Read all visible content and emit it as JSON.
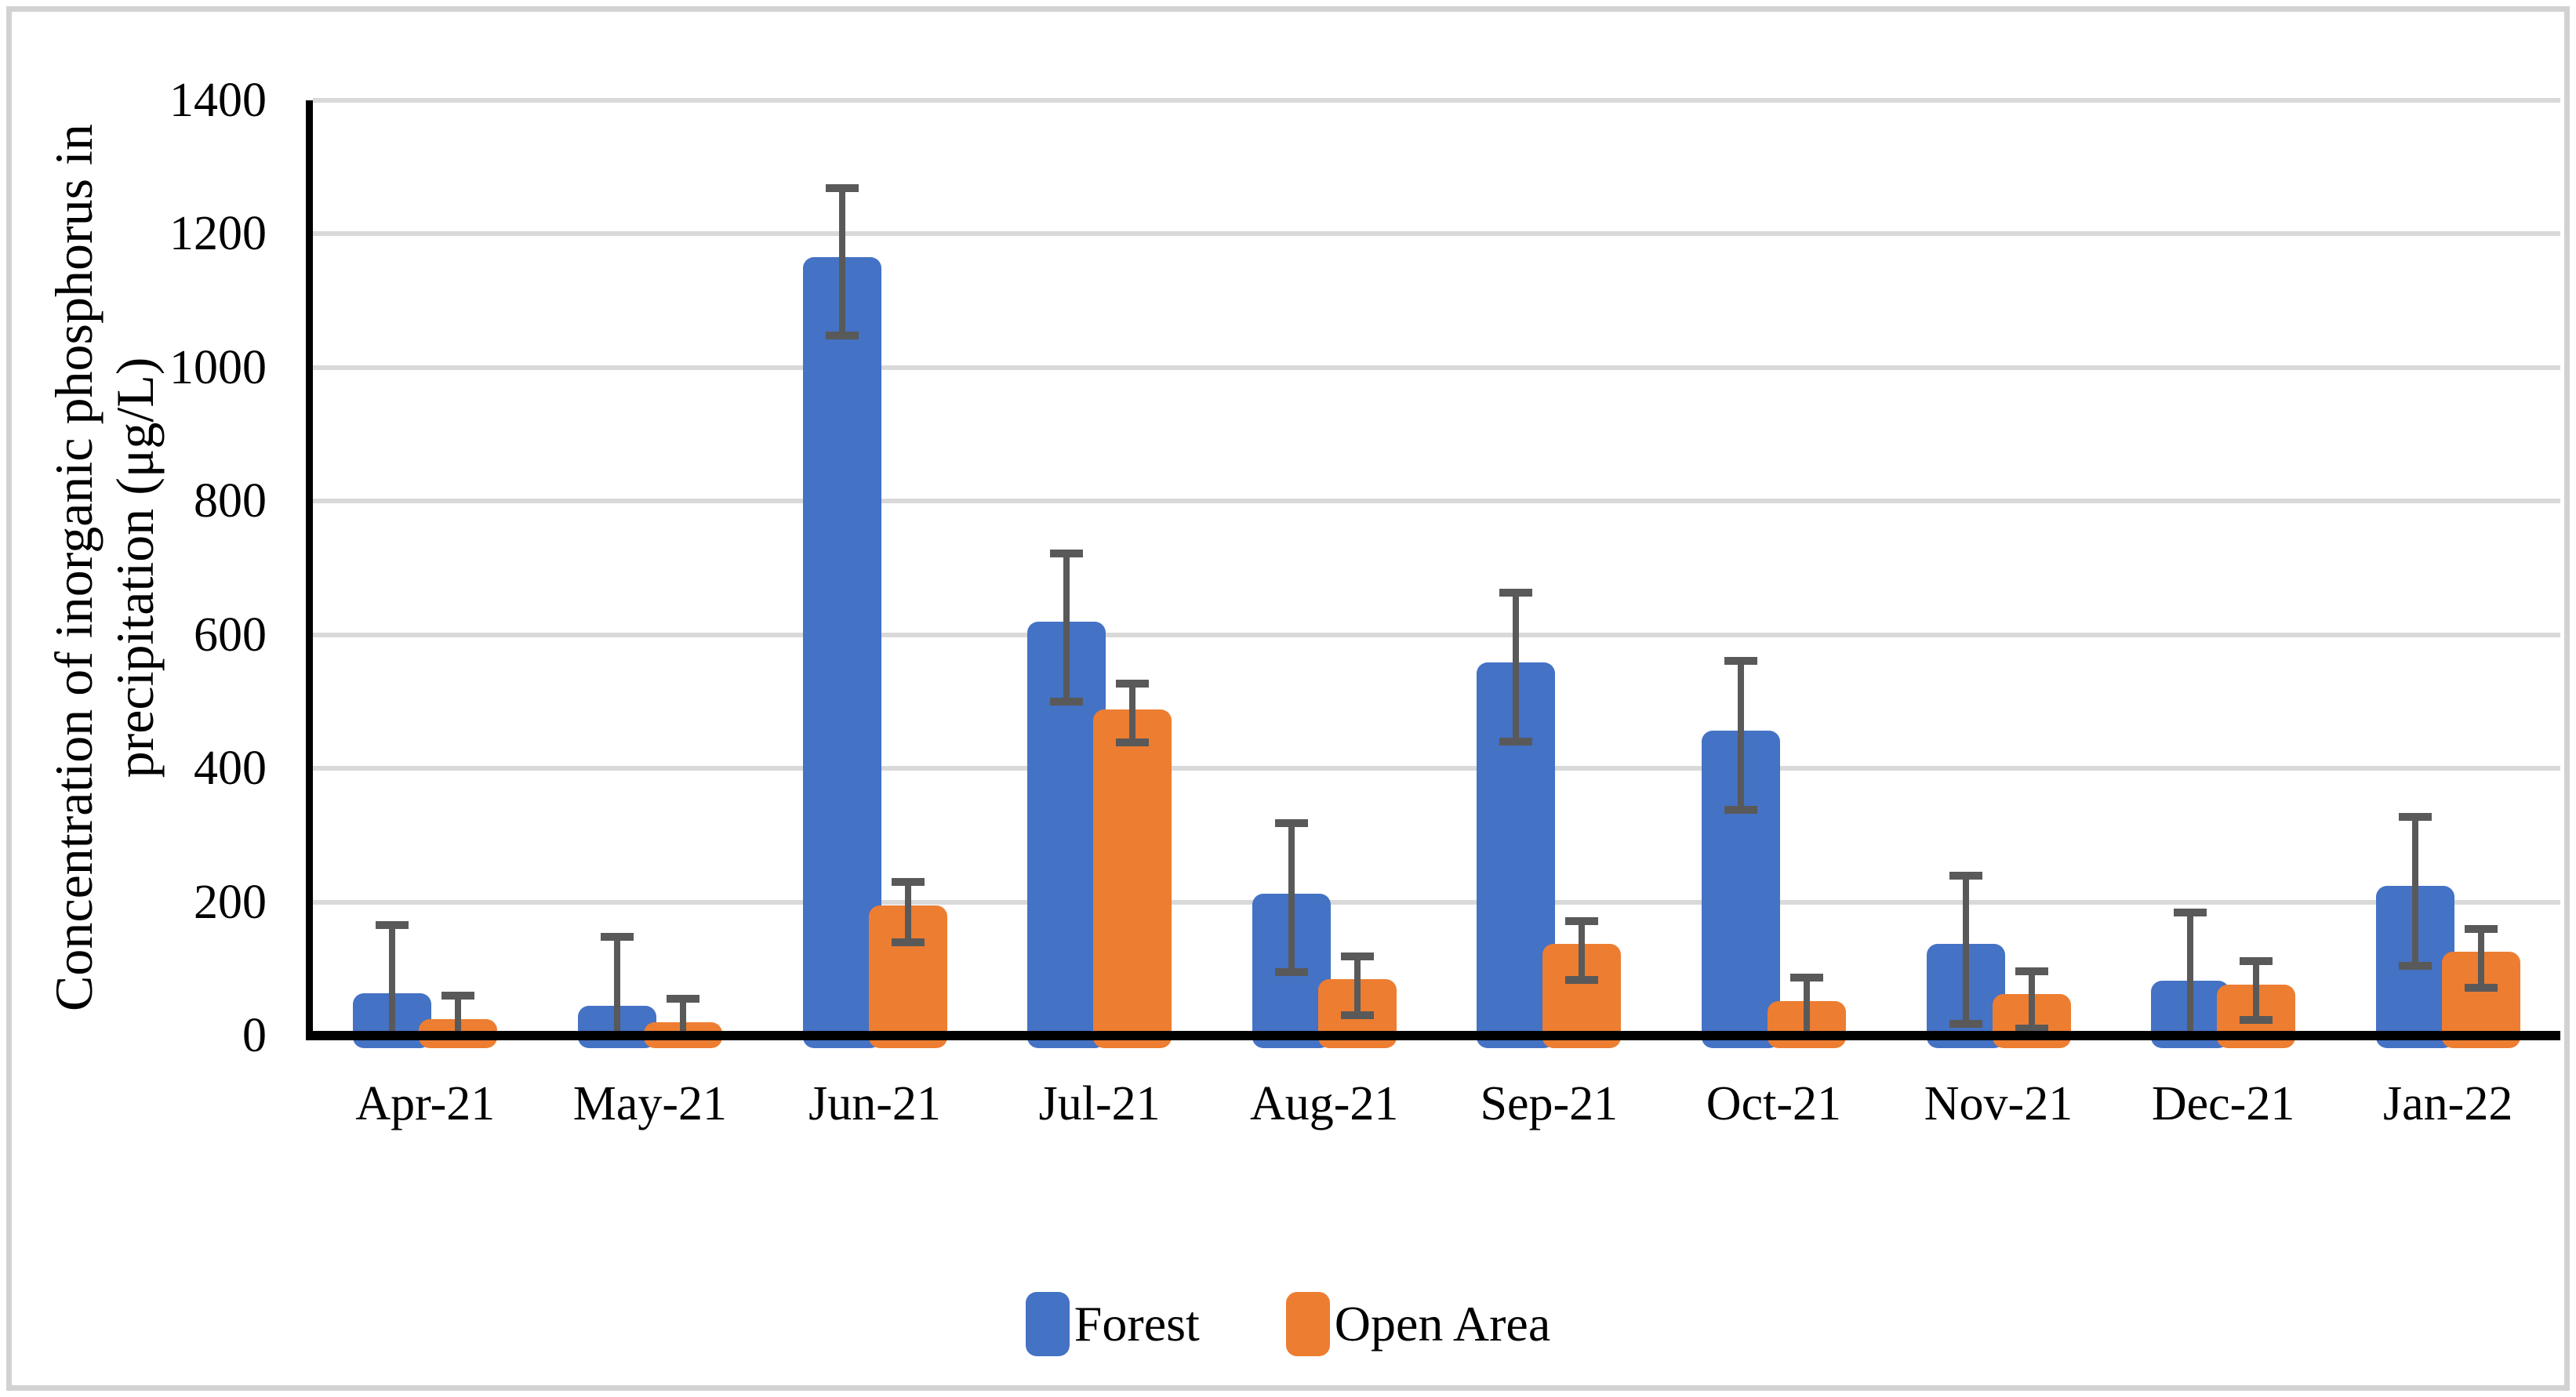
{
  "figure": {
    "background": "#ffffff",
    "frame_color": "#d2d2d2"
  },
  "chart_data": {
    "type": "bar",
    "title": "",
    "ylabel": "Concentration of inorganic phosphorus in precipitation (μg/L)",
    "ylabel_lines": [
      "Concentration of inorganic phosphorus in",
      "precipitation (μg/L)"
    ],
    "xlabel": "",
    "ylim": [
      0,
      1400
    ],
    "yticks": [
      0,
      200,
      400,
      600,
      800,
      1000,
      1200,
      1400
    ],
    "grid": "horizontal",
    "gridline_color": "#d9d9d9",
    "axis_color": "#000000",
    "error_bar_color": "#595959",
    "legend_position": "bottom",
    "categories": [
      "Apr-21",
      "May-21",
      "Jun-21",
      "Jul-21",
      "Aug-21",
      "Sep-21",
      "Oct-21",
      "Nov-21",
      "Dec-21",
      "Jan-22"
    ],
    "series": [
      {
        "name": "Forest",
        "color": "#4472C4",
        "values": [
          63,
          45,
          1165,
          620,
          212,
          559,
          456,
          137,
          82,
          224
        ],
        "err_hi": [
          165,
          148,
          1268,
          722,
          318,
          663,
          561,
          240,
          184,
          328
        ],
        "err_lo": [
          0,
          0,
          1048,
          500,
          95,
          440,
          338,
          18,
          0,
          104
        ],
        "err_lo_cap": [
          false,
          false,
          true,
          true,
          true,
          true,
          true,
          true,
          false,
          true
        ]
      },
      {
        "name": "Open Area",
        "color": "#ED7D31",
        "values": [
          25,
          20,
          195,
          488,
          84,
          137,
          52,
          62,
          76,
          125
        ],
        "err_hi": [
          60,
          55,
          230,
          527,
          118,
          171,
          87,
          96,
          111,
          160
        ],
        "err_lo": [
          0,
          0,
          140,
          439,
          30,
          83,
          0,
          10,
          24,
          72
        ],
        "err_lo_cap": [
          false,
          false,
          true,
          true,
          true,
          true,
          false,
          true,
          true,
          true
        ]
      }
    ]
  }
}
